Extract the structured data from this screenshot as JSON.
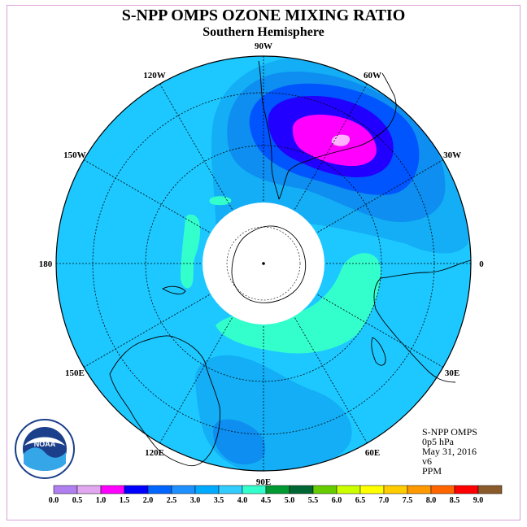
{
  "title": "S-NPP OMPS OZONE MIXING RATIO",
  "subtitle": "Southern Hemisphere",
  "info": {
    "instrument": "S-NPP OMPS",
    "level": "0p5 hPa",
    "date": "May 31, 2016",
    "version": "v6",
    "units": "PPM"
  },
  "logo": {
    "text": "NOAA",
    "ring_text": "NATIONAL OCEANIC AND ATMOSPHERIC ADMINISTRATION · U.S. DEPARTMENT OF COMMERCE"
  },
  "longitude_labels": [
    {
      "text": "90W",
      "angle": -90
    },
    {
      "text": "60W",
      "angle": -60
    },
    {
      "text": "30W",
      "angle": -30
    },
    {
      "text": "0",
      "angle": 0
    },
    {
      "text": "30E",
      "angle": 30
    },
    {
      "text": "60E",
      "angle": 60
    },
    {
      "text": "90E",
      "angle": 90
    },
    {
      "text": "120E",
      "angle": 120
    },
    {
      "text": "150E",
      "angle": 150
    },
    {
      "text": "180",
      "angle": 180
    },
    {
      "text": "150W",
      "angle": 210
    },
    {
      "text": "120W",
      "angle": 240
    }
  ],
  "colorbar": {
    "ticks": [
      "0.0",
      "0.5",
      "1.0",
      "1.5",
      "2.0",
      "2.5",
      "3.0",
      "3.5",
      "4.0",
      "4.5",
      "5.0",
      "5.5",
      "6.0",
      "6.5",
      "7.0",
      "7.5",
      "8.0",
      "8.5",
      "9.0"
    ],
    "colors": [
      "#b07ff0",
      "#e1a7f0",
      "#ff00ff",
      "#0000ff",
      "#0066ff",
      "#1e90ff",
      "#00aaff",
      "#33ccff",
      "#33ffcc",
      "#009933",
      "#006633",
      "#66cc00",
      "#ccff00",
      "#ffff00",
      "#ffcc00",
      "#ff9900",
      "#ff6600",
      "#ff0000",
      "#8b5a2b"
    ]
  },
  "palette": {
    "base": "#1cc8ff",
    "level_3_0": "#13aef5",
    "level_2_5": "#0d8ef0",
    "level_2_0": "#0055ff",
    "level_1_5": "#2200ff",
    "level_1_0": "#ff00ff",
    "level_0_5": "#ffb0ff",
    "level_3_5": "#33ffcc"
  }
}
